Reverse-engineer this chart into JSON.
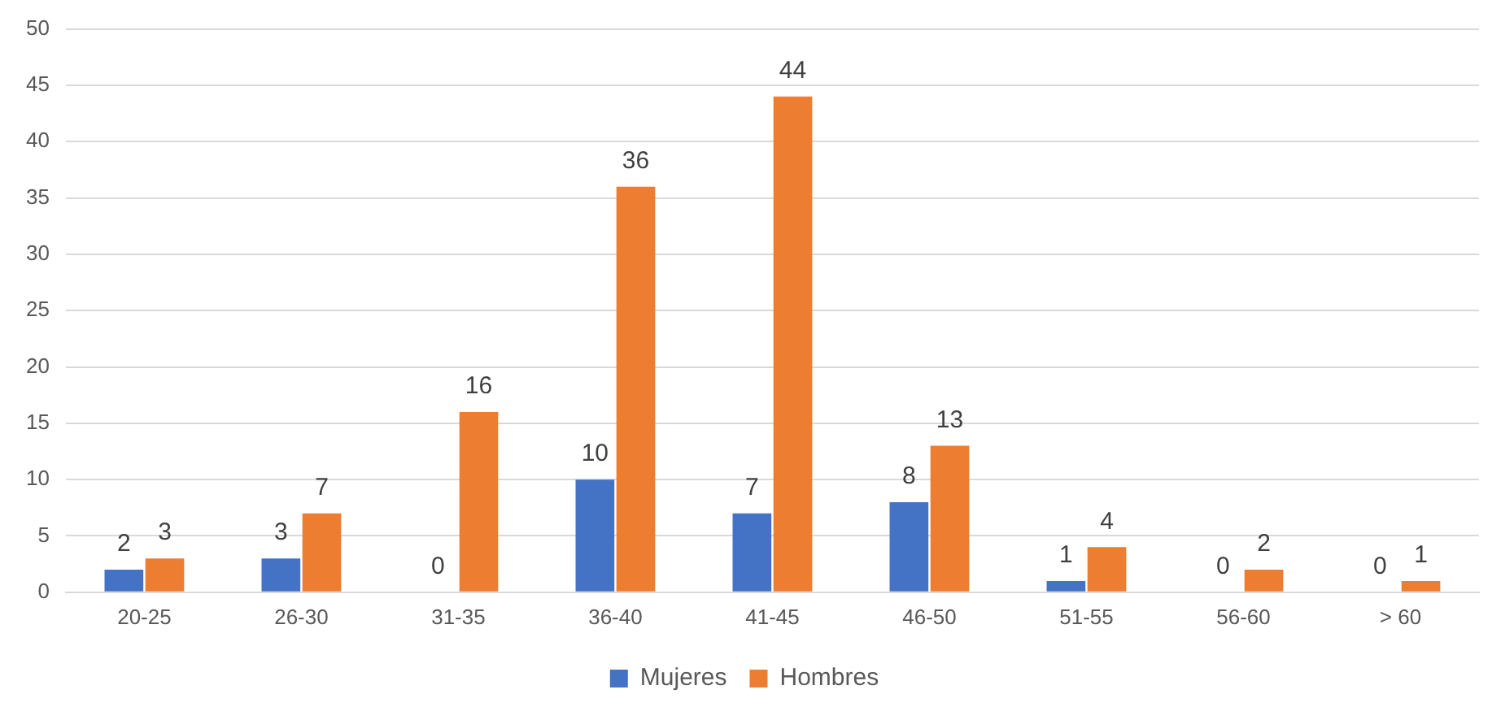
{
  "chart_data": {
    "type": "bar",
    "categories": [
      "20-25",
      "26-30",
      "31-35",
      "36-40",
      "41-45",
      "46-50",
      "51-55",
      "56-60",
      "> 60"
    ],
    "series": [
      {
        "name": "Mujeres",
        "color": "#4472c4",
        "values": [
          2,
          3,
          0,
          10,
          7,
          8,
          1,
          0,
          0
        ]
      },
      {
        "name": "Hombres",
        "color": "#ed7d31",
        "values": [
          3,
          7,
          16,
          36,
          44,
          13,
          4,
          2,
          1
        ]
      }
    ],
    "ylim": [
      0,
      50
    ],
    "yticks": [
      0,
      5,
      10,
      15,
      20,
      25,
      30,
      35,
      40,
      45,
      50
    ],
    "grid": "y",
    "legend": "bottom",
    "data_labels": true
  }
}
